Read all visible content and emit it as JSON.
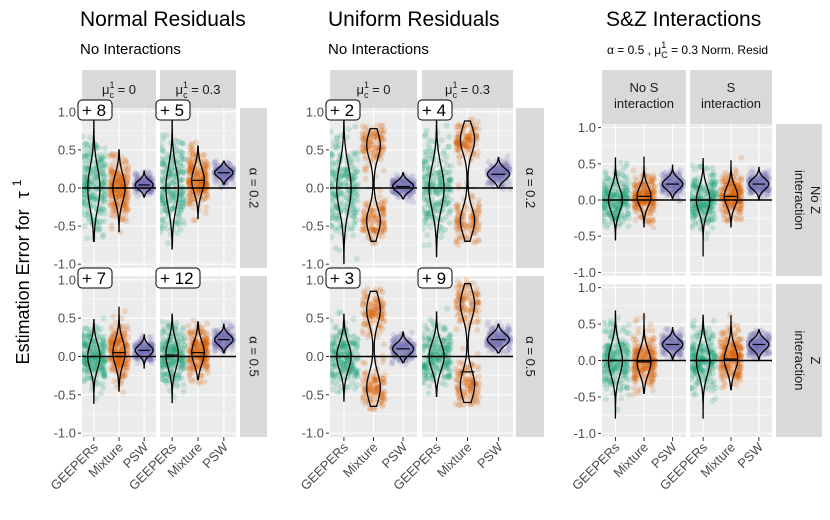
{
  "y_axis_label_text": "Estimation Error for",
  "y_axis_label_sym": "τ",
  "y_axis_label_sup": "1",
  "chart_data": [
    {
      "type": "violin",
      "title": "Normal Residuals",
      "subtitle": "No Interactions",
      "colors": [
        "#1b9e77",
        "#d95f02",
        "#7570b3"
      ],
      "categories": [
        "GEEPERs",
        "Mixture",
        "PSW"
      ],
      "col_strips": [
        {
          "base": "μ",
          "sub": "c",
          "sup": "1",
          "rest": " = 0"
        },
        {
          "base": "μ",
          "sub": "c",
          "sup": "1",
          "rest": " = 0.3"
        }
      ],
      "row_strips": [
        {
          "base": "α",
          "rest": " = 0.2"
        },
        {
          "base": "α",
          "rest": " = 0.5"
        }
      ],
      "ylim": [
        -1.05,
        1.05
      ],
      "yticks": [
        -1.0,
        -0.5,
        0.0,
        0.5,
        1.0
      ],
      "tick_labels": [
        "-1.0",
        "-0.5",
        "0.0",
        "0.5",
        "1.0"
      ],
      "cells": [
        {
          "row": 0,
          "col": 0,
          "count_label": "+ 8",
          "series": [
            {
              "median": 0.0,
              "lo": -0.7,
              "hi": 1.0,
              "spread": 0.9
            },
            {
              "median": 0.0,
              "lo": -0.58,
              "hi": 0.5,
              "spread": 0.6
            },
            {
              "median": 0.04,
              "lo": -0.12,
              "hi": 0.22,
              "spread": 0.2
            }
          ]
        },
        {
          "row": 0,
          "col": 1,
          "count_label": "+ 5",
          "series": [
            {
              "median": 0.0,
              "lo": -0.8,
              "hi": 1.0,
              "spread": 0.9
            },
            {
              "median": 0.1,
              "lo": -0.4,
              "hi": 0.55,
              "spread": 0.55
            },
            {
              "median": 0.2,
              "lo": 0.05,
              "hi": 0.35,
              "spread": 0.2
            }
          ]
        },
        {
          "row": 1,
          "col": 0,
          "count_label": "+ 7",
          "series": [
            {
              "median": 0.0,
              "lo": -0.62,
              "hi": 0.48,
              "spread": 0.55
            },
            {
              "median": 0.05,
              "lo": -0.45,
              "hi": 0.65,
              "spread": 0.55
            },
            {
              "median": 0.08,
              "lo": -0.15,
              "hi": 0.28,
              "spread": 0.22
            }
          ]
        },
        {
          "row": 1,
          "col": 1,
          "count_label": "+ 12",
          "series": [
            {
              "median": 0.02,
              "lo": -0.6,
              "hi": 0.55,
              "spread": 0.6
            },
            {
              "median": 0.05,
              "lo": -0.3,
              "hi": 0.45,
              "spread": 0.5
            },
            {
              "median": 0.22,
              "lo": 0.05,
              "hi": 0.42,
              "spread": 0.22
            }
          ]
        }
      ]
    },
    {
      "type": "violin",
      "title": "Uniform Residuals",
      "subtitle": "No Interactions",
      "colors": [
        "#1b9e77",
        "#d95f02",
        "#7570b3"
      ],
      "categories": [
        "GEEPERs",
        "Mixture",
        "PSW"
      ],
      "col_strips": [
        {
          "base": "μ",
          "sub": "c",
          "sup": "1",
          "rest": " = 0"
        },
        {
          "base": "μ",
          "sub": "c",
          "sup": "1",
          "rest": " = 0.3"
        }
      ],
      "row_strips": [
        {
          "base": "α",
          "rest": " = 0.2"
        },
        {
          "base": "α",
          "rest": " = 0.5"
        }
      ],
      "ylim": [
        -1.05,
        1.05
      ],
      "yticks": [
        -1.0,
        -0.5,
        0.0,
        0.5,
        1.0
      ],
      "tick_labels": [
        "-1.0",
        "-0.5",
        "0.0",
        "0.5",
        "1.0"
      ],
      "cells": [
        {
          "row": 0,
          "col": 0,
          "count_label": "+ 2",
          "series": [
            {
              "median": 0.0,
              "lo": -1.0,
              "hi": 1.0,
              "spread": 1.0
            },
            {
              "median": 0.0,
              "lo": -0.7,
              "hi": 0.78,
              "spread": 0.8,
              "bimodal": true
            },
            {
              "median": 0.02,
              "lo": -0.14,
              "hi": 0.2,
              "spread": 0.22
            }
          ]
        },
        {
          "row": 0,
          "col": 1,
          "count_label": "+ 4",
          "series": [
            {
              "median": 0.0,
              "lo": -0.9,
              "hi": 1.0,
              "spread": 0.95
            },
            {
              "median": 0.0,
              "lo": -0.7,
              "hi": 0.88,
              "spread": 0.8,
              "bimodal": true
            },
            {
              "median": 0.18,
              "lo": 0.0,
              "hi": 0.4,
              "spread": 0.25
            }
          ]
        },
        {
          "row": 1,
          "col": 0,
          "count_label": "+ 3",
          "series": [
            {
              "median": 0.0,
              "lo": -0.58,
              "hi": 0.55,
              "spread": 0.6
            },
            {
              "median": 0.0,
              "lo": -0.65,
              "hi": 0.85,
              "spread": 0.85,
              "bimodal": true
            },
            {
              "median": 0.1,
              "lo": -0.08,
              "hi": 0.32,
              "spread": 0.25
            }
          ]
        },
        {
          "row": 1,
          "col": 1,
          "count_label": "+ 9",
          "series": [
            {
              "median": 0.0,
              "lo": -0.52,
              "hi": 0.58,
              "spread": 0.6
            },
            {
              "median": -0.2,
              "lo": -0.6,
              "hi": 0.95,
              "spread": 0.85,
              "bimodal": true
            },
            {
              "median": 0.22,
              "lo": 0.05,
              "hi": 0.42,
              "spread": 0.25
            }
          ]
        }
      ]
    },
    {
      "type": "violin",
      "title": "S&Z Interactions",
      "subtitle": "α = 0.5 , μ_C^1 = 0.3 Norm. Resid",
      "subtitle_parts": {
        "a": "α = 0.5 , ",
        "base": "μ",
        "sub": "C",
        "sup": "1",
        "rest": " = 0.3 Norm. Resid"
      },
      "colors": [
        "#1b9e77",
        "#d95f02",
        "#7570b3"
      ],
      "categories": [
        "GEEPERs",
        "Mixture",
        "PSW"
      ],
      "col_strips": [
        {
          "lines": [
            "No S",
            "interaction"
          ]
        },
        {
          "lines": [
            "S",
            "interaction"
          ]
        }
      ],
      "row_strips": [
        {
          "lines": [
            "No Z",
            "interaction"
          ]
        },
        {
          "lines": [
            "Z",
            "interaction"
          ]
        }
      ],
      "ylim": [
        -1.05,
        1.05
      ],
      "yticks": [
        -1.0,
        -0.5,
        0.0,
        0.5,
        1.0
      ],
      "tick_labels": [
        "-1.0",
        "-0.5",
        "0.0",
        "0.5",
        "1.0"
      ],
      "cells": [
        {
          "row": 0,
          "col": 0,
          "count_label": "",
          "series": [
            {
              "median": 0.0,
              "lo": -0.55,
              "hi": 0.58,
              "spread": 0.55
            },
            {
              "median": 0.05,
              "lo": -0.38,
              "hi": 0.6,
              "spread": 0.45
            },
            {
              "median": 0.22,
              "lo": 0.02,
              "hi": 0.48,
              "spread": 0.25
            }
          ]
        },
        {
          "row": 0,
          "col": 1,
          "count_label": "",
          "series": [
            {
              "median": 0.0,
              "lo": -0.78,
              "hi": 0.58,
              "spread": 0.58
            },
            {
              "median": 0.05,
              "lo": -0.38,
              "hi": 0.55,
              "spread": 0.45
            },
            {
              "median": 0.22,
              "lo": 0.0,
              "hi": 0.45,
              "spread": 0.25
            }
          ]
        },
        {
          "row": 1,
          "col": 0,
          "count_label": "",
          "series": [
            {
              "median": 0.0,
              "lo": -0.8,
              "hi": 0.68,
              "spread": 0.7
            },
            {
              "median": -0.02,
              "lo": -0.45,
              "hi": 0.65,
              "spread": 0.55
            },
            {
              "median": 0.22,
              "lo": 0.0,
              "hi": 0.45,
              "spread": 0.25
            }
          ]
        },
        {
          "row": 1,
          "col": 1,
          "count_label": "",
          "series": [
            {
              "median": 0.0,
              "lo": -0.8,
              "hi": 0.62,
              "spread": 0.68
            },
            {
              "median": 0.02,
              "lo": -0.4,
              "hi": 0.62,
              "spread": 0.55
            },
            {
              "median": 0.22,
              "lo": 0.0,
              "hi": 0.42,
              "spread": 0.25
            }
          ]
        }
      ]
    }
  ]
}
